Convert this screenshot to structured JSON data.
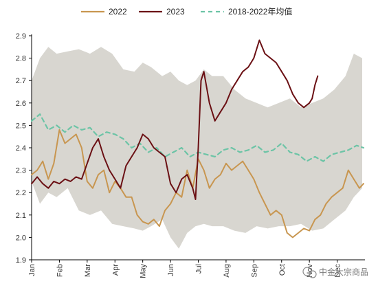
{
  "chart_data": {
    "type": "line",
    "title": "",
    "xlabel": "",
    "ylabel": "",
    "ylim": [
      1.9,
      2.9
    ],
    "y_ticks": [
      "1.9",
      "2.0",
      "2.1",
      "2.2",
      "2.3",
      "2.4",
      "2.5",
      "2.6",
      "2.7",
      "2.8",
      "2.9"
    ],
    "x_ticks": [
      "Jan",
      "Feb",
      "Mar",
      "Apr",
      "May",
      "Jun",
      "Jul",
      "Aug",
      "Sep",
      "Oct",
      "Nov",
      "Dec"
    ],
    "x_unit": "month (fractional, 0 = start of Jan)",
    "legend_position": "top",
    "grid": false,
    "range_band": {
      "color": "#d8d6d0",
      "x": [
        0.0,
        0.3,
        0.6,
        0.9,
        1.3,
        1.7,
        2.1,
        2.5,
        2.9,
        3.3,
        3.7,
        4.0,
        4.3,
        4.7,
        5.0,
        5.3,
        5.6,
        5.9,
        6.2,
        6.5,
        6.9,
        7.3,
        7.7,
        8.1,
        8.5,
        8.9,
        9.3,
        9.7,
        10.1,
        10.5,
        10.9,
        11.3,
        11.6,
        11.9
      ],
      "upper": [
        2.7,
        2.8,
        2.85,
        2.82,
        2.83,
        2.84,
        2.82,
        2.85,
        2.82,
        2.75,
        2.74,
        2.78,
        2.76,
        2.72,
        2.74,
        2.7,
        2.68,
        2.7,
        2.75,
        2.72,
        2.72,
        2.66,
        2.62,
        2.6,
        2.58,
        2.6,
        2.62,
        2.58,
        2.6,
        2.62,
        2.66,
        2.72,
        2.82,
        2.8
      ],
      "lower": [
        2.25,
        2.15,
        2.2,
        2.18,
        2.22,
        2.12,
        2.1,
        2.12,
        2.06,
        2.05,
        2.04,
        2.03,
        2.05,
        2.08,
        2.0,
        1.95,
        2.02,
        2.05,
        2.06,
        2.05,
        2.05,
        2.03,
        2.02,
        2.05,
        2.04,
        2.05,
        2.05,
        2.06,
        2.03,
        2.04,
        2.08,
        2.12,
        2.18,
        2.22
      ]
    },
    "series": [
      {
        "name": "2022",
        "color": "#c89650",
        "style": "solid",
        "x": [
          0.0,
          0.2,
          0.4,
          0.6,
          0.8,
          1.0,
          1.2,
          1.4,
          1.6,
          1.8,
          2.0,
          2.2,
          2.4,
          2.6,
          2.8,
          3.0,
          3.2,
          3.4,
          3.6,
          3.8,
          4.0,
          4.2,
          4.4,
          4.6,
          4.8,
          5.0,
          5.2,
          5.4,
          5.6,
          5.8,
          6.0,
          6.2,
          6.4,
          6.6,
          6.8,
          7.0,
          7.2,
          7.4,
          7.6,
          7.8,
          8.0,
          8.2,
          8.4,
          8.6,
          8.8,
          9.0,
          9.2,
          9.4,
          9.6,
          9.8,
          10.0,
          10.2,
          10.4,
          10.6,
          10.8,
          11.0,
          11.2,
          11.4,
          11.6,
          11.8,
          11.95
        ],
        "values": [
          2.28,
          2.3,
          2.34,
          2.26,
          2.33,
          2.48,
          2.42,
          2.44,
          2.46,
          2.4,
          2.25,
          2.22,
          2.28,
          2.3,
          2.2,
          2.25,
          2.22,
          2.18,
          2.18,
          2.1,
          2.07,
          2.06,
          2.08,
          2.05,
          2.12,
          2.15,
          2.2,
          2.18,
          2.3,
          2.22,
          2.35,
          2.3,
          2.22,
          2.26,
          2.28,
          2.33,
          2.3,
          2.32,
          2.34,
          2.3,
          2.26,
          2.2,
          2.15,
          2.1,
          2.12,
          2.1,
          2.02,
          2.0,
          2.02,
          2.04,
          2.03,
          2.08,
          2.1,
          2.15,
          2.18,
          2.2,
          2.22,
          2.3,
          2.26,
          2.22,
          2.24
        ]
      },
      {
        "name": "2023",
        "color": "#6b1014",
        "style": "solid",
        "x": [
          0.0,
          0.2,
          0.4,
          0.6,
          0.8,
          1.0,
          1.2,
          1.4,
          1.6,
          1.8,
          2.0,
          2.2,
          2.4,
          2.6,
          2.8,
          3.0,
          3.2,
          3.4,
          3.6,
          3.8,
          4.0,
          4.2,
          4.4,
          4.6,
          4.8,
          5.0,
          5.2,
          5.4,
          5.6,
          5.8,
          5.9,
          6.0,
          6.1,
          6.2,
          6.4,
          6.6,
          6.8,
          7.0,
          7.2,
          7.4,
          7.6,
          7.8,
          8.0,
          8.2,
          8.4,
          8.6,
          8.8,
          9.0,
          9.2,
          9.4,
          9.6,
          9.8,
          10.0,
          10.1,
          10.2,
          10.3
        ],
        "values": [
          2.24,
          2.27,
          2.24,
          2.22,
          2.25,
          2.24,
          2.26,
          2.25,
          2.27,
          2.26,
          2.33,
          2.4,
          2.44,
          2.36,
          2.3,
          2.26,
          2.22,
          2.32,
          2.36,
          2.4,
          2.46,
          2.44,
          2.4,
          2.38,
          2.36,
          2.24,
          2.2,
          2.26,
          2.28,
          2.22,
          2.17,
          2.4,
          2.7,
          2.74,
          2.6,
          2.52,
          2.56,
          2.6,
          2.66,
          2.7,
          2.74,
          2.76,
          2.8,
          2.88,
          2.82,
          2.8,
          2.78,
          2.74,
          2.7,
          2.64,
          2.6,
          2.58,
          2.6,
          2.62,
          2.68,
          2.72
        ]
      },
      {
        "name": "2018-2022年均值",
        "color": "#6cc4a6",
        "style": "dashed",
        "x": [
          0.0,
          0.3,
          0.6,
          0.9,
          1.2,
          1.5,
          1.8,
          2.1,
          2.4,
          2.7,
          3.0,
          3.3,
          3.6,
          3.9,
          4.2,
          4.5,
          4.8,
          5.1,
          5.4,
          5.7,
          6.0,
          6.3,
          6.6,
          6.9,
          7.2,
          7.5,
          7.8,
          8.1,
          8.4,
          8.7,
          9.0,
          9.3,
          9.6,
          9.9,
          10.2,
          10.5,
          10.8,
          11.1,
          11.4,
          11.7,
          11.95
        ],
        "values": [
          2.52,
          2.55,
          2.48,
          2.5,
          2.47,
          2.5,
          2.48,
          2.49,
          2.45,
          2.47,
          2.46,
          2.44,
          2.4,
          2.42,
          2.38,
          2.4,
          2.36,
          2.38,
          2.4,
          2.36,
          2.38,
          2.37,
          2.36,
          2.39,
          2.4,
          2.38,
          2.39,
          2.41,
          2.38,
          2.39,
          2.42,
          2.38,
          2.37,
          2.34,
          2.36,
          2.34,
          2.37,
          2.38,
          2.39,
          2.41,
          2.4
        ]
      }
    ]
  },
  "watermark": {
    "text": "中金大宗商品",
    "icon": "wechat-icon"
  }
}
